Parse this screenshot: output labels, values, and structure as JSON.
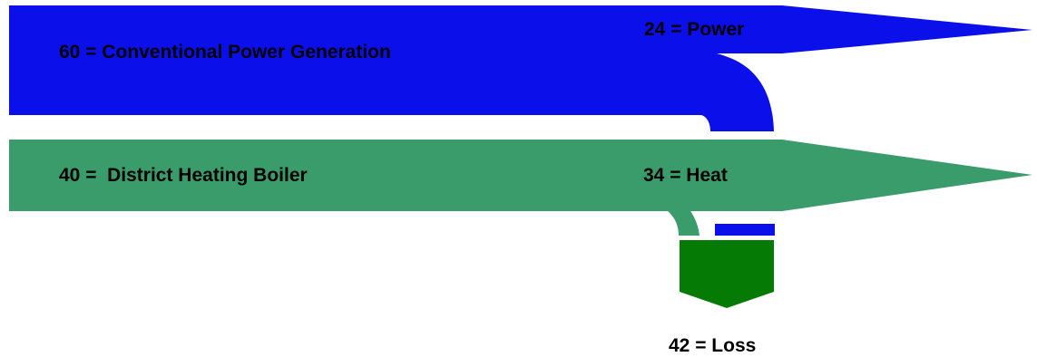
{
  "diagram": {
    "type": "sankey",
    "colors": {
      "power_flow": "#0b10ea",
      "heat_flow": "#3a9b6b",
      "loss_flow": "#057a05",
      "text": "#000000"
    },
    "nodes": [
      {
        "id": "conventional_power_generation",
        "value": 60,
        "label": "60 = Conventional Power Generation"
      },
      {
        "id": "district_heating_boiler",
        "value": 40,
        "label": "40 =  District Heating Boiler"
      },
      {
        "id": "power",
        "value": 24,
        "label": "24 = Power"
      },
      {
        "id": "heat",
        "value": 34,
        "label": "34 = Heat"
      },
      {
        "id": "loss",
        "value": 42,
        "label": "42 = Loss"
      }
    ]
  }
}
